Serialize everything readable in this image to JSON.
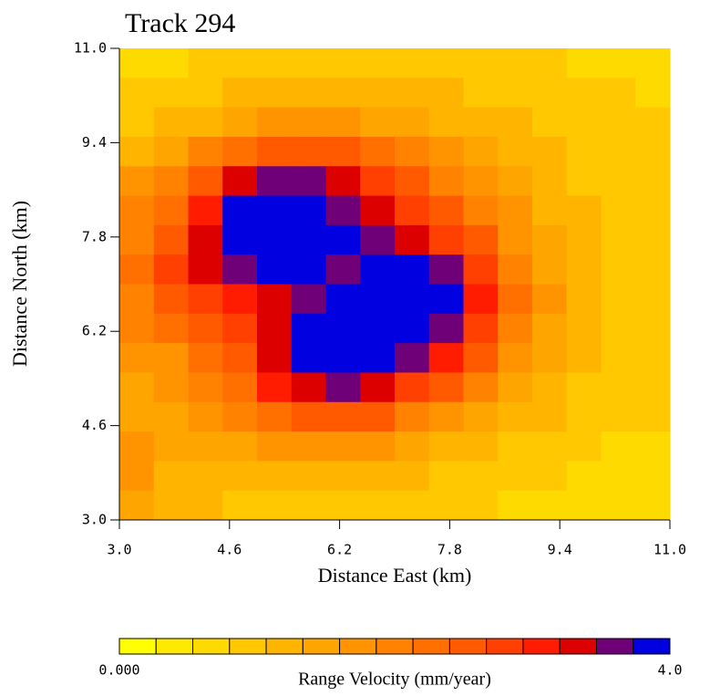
{
  "chart_data": {
    "type": "heatmap",
    "title": "Track 294",
    "x_label": "Distance East (km)",
    "y_label": "Distance North (km)",
    "xlim": [
      3.0,
      11.0
    ],
    "ylim": [
      3.0,
      11.0
    ],
    "xticks": [
      {
        "value": 3.0,
        "label": "3.0"
      },
      {
        "value": 4.6,
        "label": "4.6"
      },
      {
        "value": 6.2,
        "label": "6.2"
      },
      {
        "value": 7.8,
        "label": "7.8"
      },
      {
        "value": 9.4,
        "label": "9.4"
      },
      {
        "value": 11.0,
        "label": "11.0"
      }
    ],
    "yticks": [
      {
        "value": 3.0,
        "label": "3.0"
      },
      {
        "value": 4.6,
        "label": "4.6"
      },
      {
        "value": 6.2,
        "label": "6.2"
      },
      {
        "value": 7.8,
        "label": "7.8"
      },
      {
        "value": 9.4,
        "label": "9.4"
      },
      {
        "value": 11.0,
        "label": "11.0"
      }
    ],
    "x": [
      3.25,
      3.75,
      4.25,
      4.75,
      5.25,
      5.75,
      6.25,
      6.75,
      7.25,
      7.75,
      8.25,
      8.75,
      9.25,
      9.75,
      10.25,
      10.75
    ],
    "y": [
      10.75,
      10.25,
      9.75,
      9.25,
      8.75,
      8.25,
      7.75,
      7.25,
      6.75,
      6.25,
      5.75,
      5.25,
      4.75,
      4.25,
      3.75,
      3.25
    ],
    "z": [
      [
        0.6,
        0.7,
        0.8,
        0.8,
        0.9,
        0.9,
        1.0,
        1.0,
        1.0,
        0.9,
        0.9,
        0.8,
        0.8,
        0.7,
        0.7,
        0.6
      ],
      [
        0.8,
        0.9,
        1.0,
        1.1,
        1.2,
        1.2,
        1.2,
        1.2,
        1.1,
        1.1,
        1.0,
        1.0,
        0.9,
        0.8,
        0.8,
        0.7
      ],
      [
        1.0,
        1.1,
        1.3,
        1.5,
        1.6,
        1.7,
        1.6,
        1.5,
        1.4,
        1.3,
        1.2,
        1.1,
        1.0,
        0.9,
        0.9,
        0.8
      ],
      [
        1.3,
        1.5,
        1.9,
        2.3,
        2.5,
        2.6,
        2.5,
        2.2,
        1.9,
        1.6,
        1.4,
        1.2,
        1.1,
        1.0,
        0.9,
        0.8
      ],
      [
        1.6,
        1.9,
        2.6,
        3.2,
        3.5,
        3.5,
        3.2,
        2.8,
        2.4,
        2.0,
        1.7,
        1.4,
        1.2,
        1.0,
        0.9,
        0.8
      ],
      [
        1.9,
        2.3,
        3.0,
        3.8,
        3.9,
        3.9,
        3.7,
        3.2,
        2.8,
        2.4,
        2.0,
        1.6,
        1.3,
        1.1,
        0.9,
        0.8
      ],
      [
        2.1,
        2.6,
        3.3,
        3.9,
        4.0,
        4.0,
        3.8,
        3.5,
        3.3,
        2.9,
        2.4,
        1.8,
        1.4,
        1.1,
        1.0,
        0.8
      ],
      [
        2.2,
        2.7,
        3.2,
        3.6,
        3.8,
        3.8,
        3.6,
        3.8,
        3.9,
        3.5,
        2.8,
        2.0,
        1.5,
        1.2,
        1.0,
        0.8
      ],
      [
        2.1,
        2.5,
        2.9,
        3.1,
        3.3,
        3.5,
        3.8,
        3.9,
        4.0,
        3.8,
        3.0,
        2.2,
        1.6,
        1.2,
        1.0,
        0.9
      ],
      [
        1.9,
        2.2,
        2.6,
        2.8,
        3.3,
        3.8,
        3.9,
        4.0,
        3.9,
        3.6,
        2.8,
        2.0,
        1.5,
        1.2,
        1.0,
        0.9
      ],
      [
        1.6,
        1.8,
        2.2,
        2.6,
        3.4,
        3.9,
        3.9,
        3.9,
        3.7,
        3.1,
        2.4,
        1.8,
        1.4,
        1.1,
        1.0,
        0.9
      ],
      [
        1.5,
        1.7,
        1.9,
        2.3,
        3.0,
        3.4,
        3.5,
        3.3,
        2.9,
        2.4,
        1.9,
        1.5,
        1.2,
        1.0,
        0.9,
        0.8
      ],
      [
        1.5,
        1.5,
        1.7,
        1.9,
        2.3,
        2.6,
        2.6,
        2.4,
        2.1,
        1.8,
        1.5,
        1.2,
        1.1,
        0.9,
        0.8,
        0.8
      ],
      [
        1.6,
        1.4,
        1.4,
        1.5,
        1.7,
        1.8,
        1.8,
        1.7,
        1.5,
        1.3,
        1.2,
        1.0,
        0.9,
        0.8,
        0.7,
        0.7
      ],
      [
        1.6,
        1.3,
        1.2,
        1.2,
        1.3,
        1.3,
        1.3,
        1.2,
        1.1,
        1.0,
        0.9,
        0.8,
        0.8,
        0.7,
        0.7,
        0.6
      ],
      [
        1.5,
        1.2,
        1.1,
        1.0,
        1.0,
        1.0,
        1.0,
        0.9,
        0.9,
        0.8,
        0.8,
        0.7,
        0.7,
        0.6,
        0.6,
        0.6
      ]
    ],
    "colorbar": {
      "label": "Range Velocity (mm/year)",
      "range": [
        0,
        4
      ],
      "ticks": [
        {
          "value": 0,
          "label": "0.000"
        },
        {
          "value": 4,
          "label": "4.0"
        }
      ],
      "colors": [
        "#ffff00",
        "#ffe900",
        "#ffda00",
        "#ffc800",
        "#ffb400",
        "#ffa500",
        "#ff9400",
        "#ff8300",
        "#ff7000",
        "#ff5a00",
        "#ff4000",
        "#ff1c00",
        "#dc0000",
        "#700078",
        "#0000e0"
      ]
    }
  }
}
